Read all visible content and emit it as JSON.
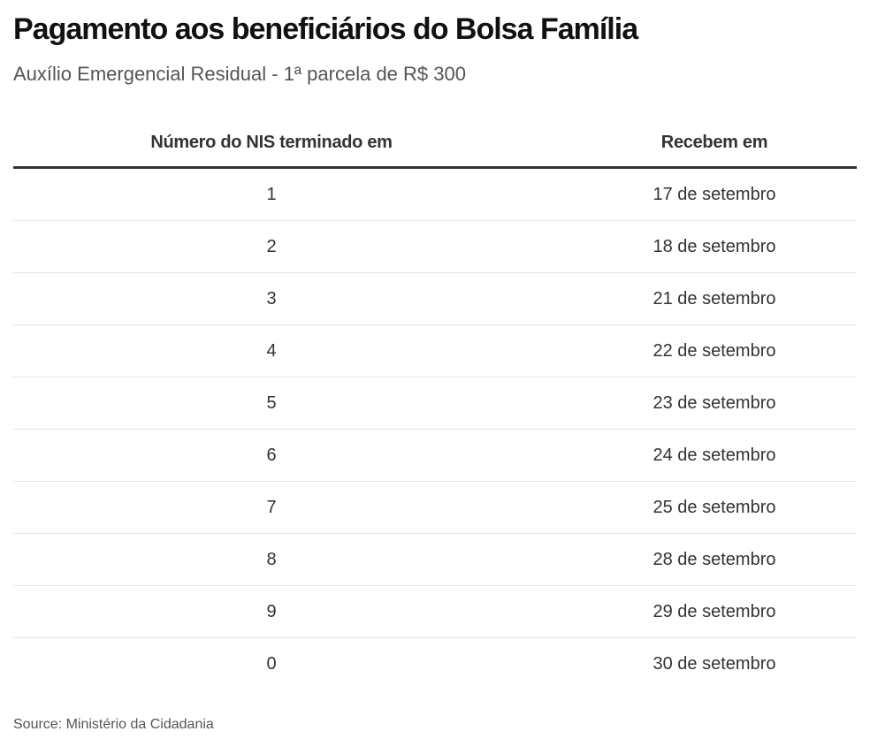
{
  "title": "Pagamento aos beneficiários do Bolsa Família",
  "subtitle": "Auxílio Emergencial Residual - 1ª parcela de R$ 300",
  "table": {
    "headers": [
      "Número do NIS terminado em",
      "Recebem em"
    ],
    "rows": [
      [
        "1",
        "17 de setembro"
      ],
      [
        "2",
        "18 de setembro"
      ],
      [
        "3",
        "21 de setembro"
      ],
      [
        "4",
        "22 de setembro"
      ],
      [
        "5",
        "23 de setembro"
      ],
      [
        "6",
        "24 de setembro"
      ],
      [
        "7",
        "25 de setembro"
      ],
      [
        "8",
        "28 de setembro"
      ],
      [
        "9",
        "29 de setembro"
      ],
      [
        "0",
        "30 de setembro"
      ]
    ]
  },
  "source": "Source: Ministério da Cidadania"
}
